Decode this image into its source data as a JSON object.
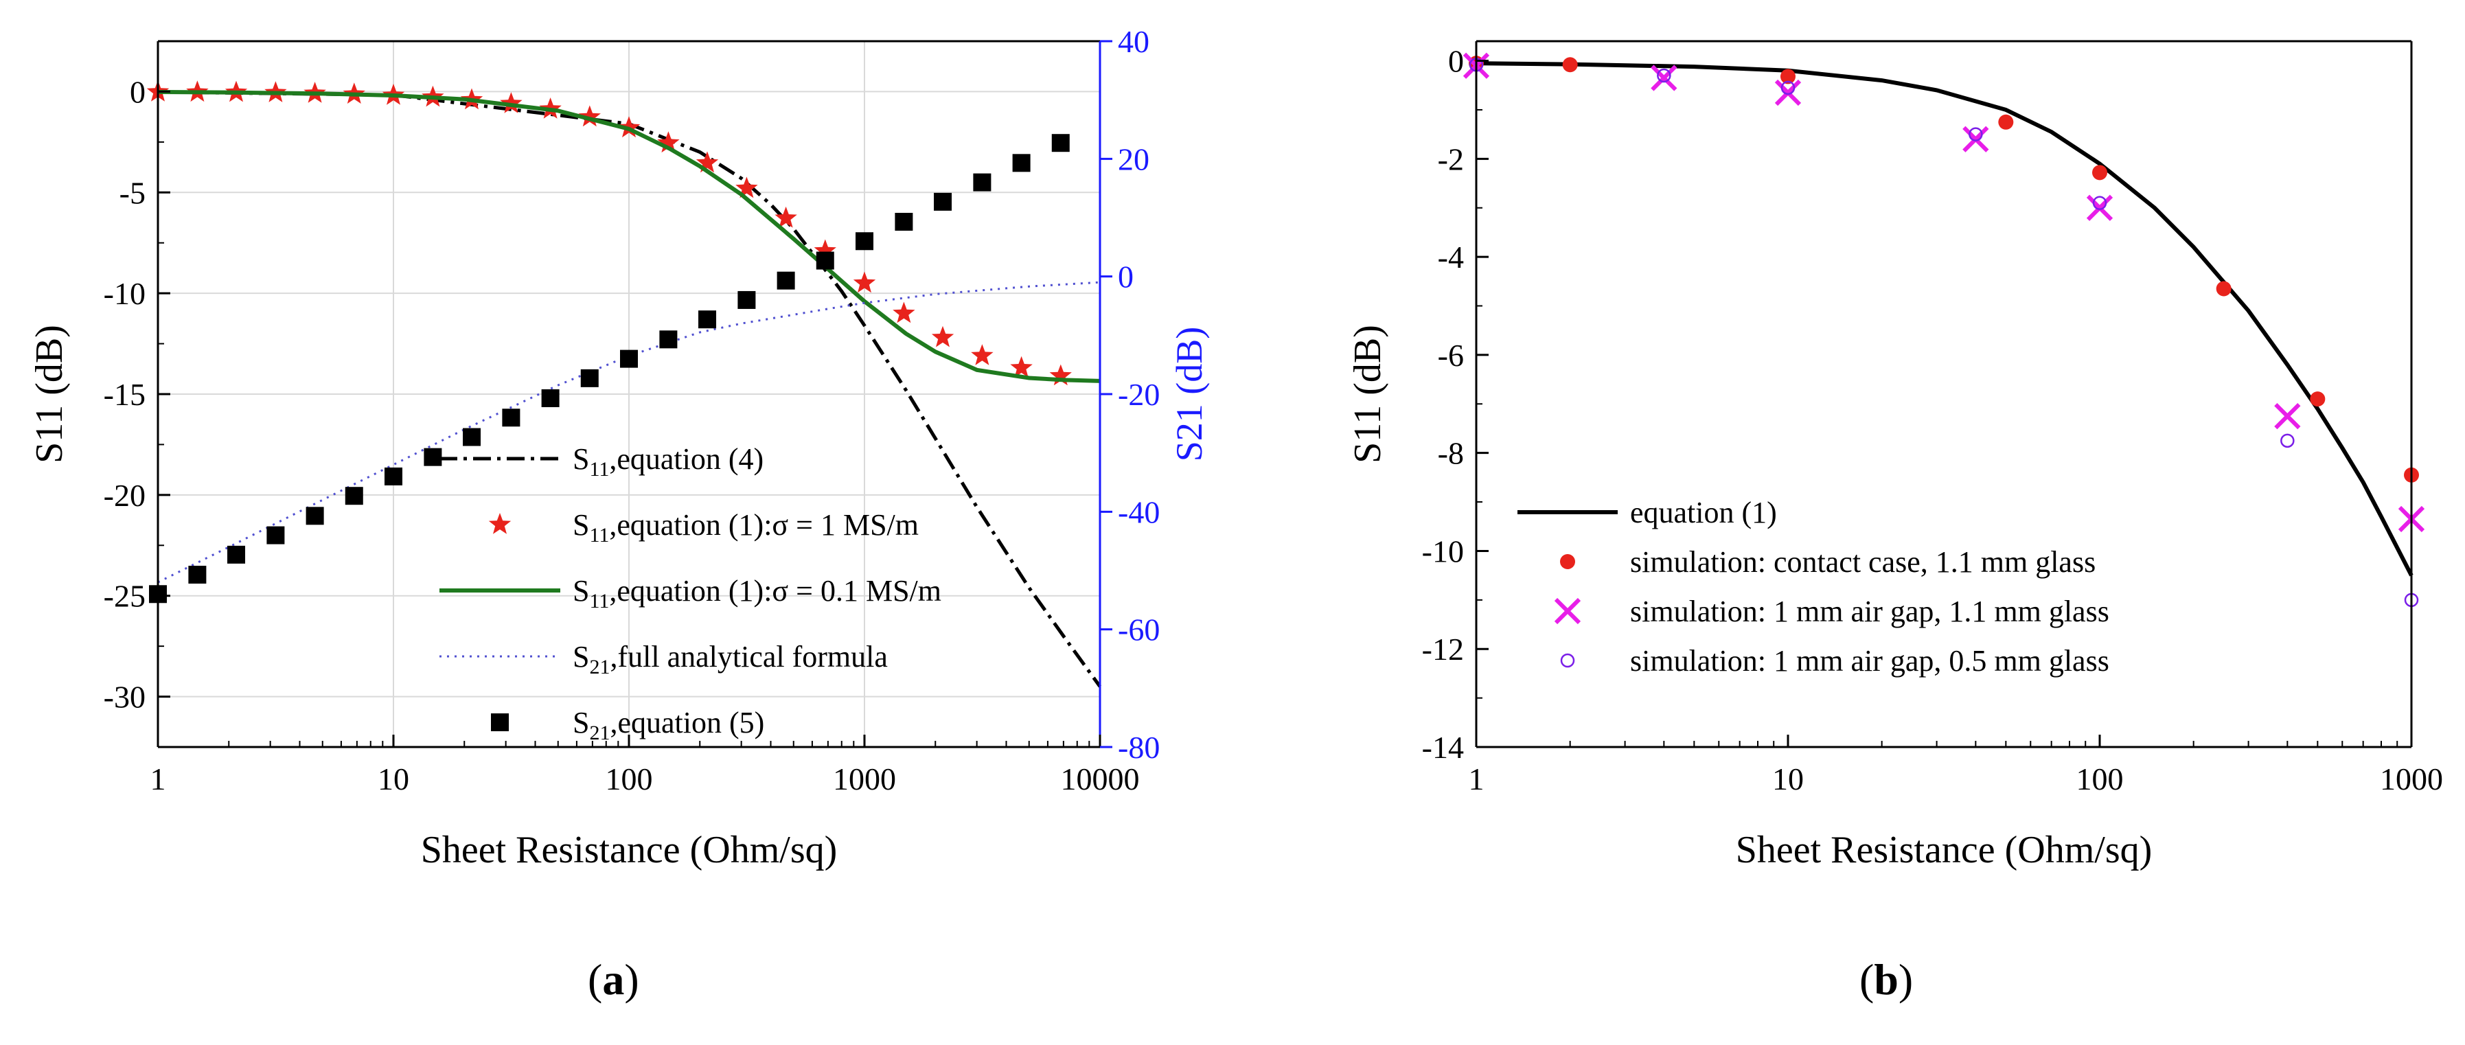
{
  "chart_data": [
    {
      "panel": "a",
      "type": "line",
      "xscale": "log",
      "xlabel": "Sheet Resistance (Ohm/sq)",
      "ylabel": "S11 (dB)",
      "y2label": "S21 (dB)",
      "xlim": [
        1,
        10000
      ],
      "ylim": [
        -32.5,
        2.5
      ],
      "y2lim": [
        -80,
        40
      ],
      "grid": true,
      "legend_position": "bottom-center",
      "x_ticks": [
        {
          "v": 1,
          "label": "1"
        },
        {
          "v": 10,
          "label": "10"
        },
        {
          "v": 100,
          "label": "100"
        },
        {
          "v": 1000,
          "label": "1000"
        },
        {
          "v": 10000,
          "label": "10000"
        }
      ],
      "y_ticks": [
        {
          "v": 0,
          "label": "0"
        },
        {
          "v": -5,
          "label": "-5"
        },
        {
          "v": -10,
          "label": "-10"
        },
        {
          "v": -15,
          "label": "-15"
        },
        {
          "v": -20,
          "label": "-20"
        },
        {
          "v": -25,
          "label": "-25"
        },
        {
          "v": -30,
          "label": "-30"
        }
      ],
      "y2_ticks": [
        {
          "v": 40,
          "label": "40"
        },
        {
          "v": 20,
          "label": "20"
        },
        {
          "v": 0,
          "label": "0"
        },
        {
          "v": -20,
          "label": "-20"
        },
        {
          "v": -40,
          "label": "-40"
        },
        {
          "v": -60,
          "label": "-60"
        },
        {
          "v": -80,
          "label": "-80"
        }
      ],
      "series": [
        {
          "name": "S11,equation (4)",
          "sub": "11",
          "text": ",equation (4)",
          "style": "dashdot",
          "color": "#000000",
          "axis": "left",
          "x": [
            1,
            10,
            100,
            200,
            300,
            400,
            500,
            600,
            800,
            1000,
            1500,
            2000,
            3000,
            5000,
            7000,
            10000
          ],
          "y": [
            -0.02,
            -0.17,
            -1.6,
            -3.0,
            -4.3,
            -5.6,
            -6.8,
            -8.0,
            -9.9,
            -11.6,
            -14.8,
            -17.2,
            -20.6,
            -24.6,
            -27.0,
            -29.5
          ]
        },
        {
          "name": "S11,equation (1):σ = 1 MS/m",
          "sub": "11",
          "text": ",equation (1):σ = 1 MS/m",
          "style": "star",
          "color": "#e8231c",
          "axis": "left",
          "x": [
            1,
            1.47,
            2.15,
            3.16,
            4.64,
            6.81,
            10,
            14.7,
            21.5,
            31.6,
            46.4,
            68.1,
            100,
            147,
            215,
            316,
            464,
            681,
            1000,
            1470,
            2150,
            3160,
            4640,
            6810
          ],
          "y": [
            -0.02,
            -0.03,
            -0.04,
            -0.06,
            -0.09,
            -0.13,
            -0.19,
            -0.28,
            -0.41,
            -0.6,
            -0.87,
            -1.26,
            -1.8,
            -2.55,
            -3.54,
            -4.8,
            -6.28,
            -7.9,
            -9.5,
            -11.0,
            -12.2,
            -13.1,
            -13.7,
            -14.1
          ]
        },
        {
          "name": "S11,equation (1):σ = 0.1 MS/m",
          "sub": "11",
          "text": ",equation (1):σ = 0.1 MS/m",
          "style": "solid",
          "color": "#1f7a1f",
          "axis": "left",
          "x": [
            1,
            2,
            5,
            10,
            20,
            50,
            100,
            150,
            200,
            300,
            500,
            700,
            1000,
            1500,
            2000,
            3000,
            5000,
            7000,
            10000
          ],
          "y": [
            -0.02,
            -0.04,
            -0.1,
            -0.19,
            -0.38,
            -0.95,
            -1.85,
            -2.85,
            -3.7,
            -5.1,
            -7.3,
            -8.8,
            -10.4,
            -12.0,
            -12.9,
            -13.8,
            -14.2,
            -14.3,
            -14.35
          ]
        },
        {
          "name": "S21,full analytical formula",
          "sub": "21",
          "text": ",full analytical formula",
          "style": "dotted",
          "color": "#5050d0",
          "axis": "right",
          "x": [
            1,
            2,
            5,
            10,
            20,
            50,
            100,
            200,
            300,
            500,
            700,
            1000,
            2000,
            5000,
            10000
          ],
          "y": [
            -52,
            -46,
            -38,
            -32,
            -26,
            -18.5,
            -13.5,
            -9.5,
            -8,
            -6.5,
            -5.5,
            -4.5,
            -3,
            -1.7,
            -1
          ]
        },
        {
          "name": "S21,equation (5)",
          "sub": "21",
          "text": ",equation (5)",
          "style": "square",
          "color": "#000000",
          "axis": "right",
          "x": [
            1,
            1.47,
            2.15,
            3.16,
            4.64,
            6.81,
            10,
            14.7,
            21.5,
            31.6,
            46.4,
            68.1,
            100,
            147,
            215,
            316,
            464,
            681,
            1000,
            1470,
            2150,
            3160,
            4640,
            6810
          ],
          "y": [
            -54,
            -50.7,
            -47.3,
            -44,
            -40.7,
            -37.3,
            -34,
            -30.7,
            -27.3,
            -24,
            -20.7,
            -17.3,
            -14,
            -10.7,
            -7.3,
            -4,
            -0.7,
            2.7,
            6,
            9.3,
            12.7,
            16,
            19.3,
            22.7
          ]
        }
      ]
    },
    {
      "panel": "b",
      "type": "scatter",
      "xscale": "log",
      "xlabel": "Sheet Resistance (Ohm/sq)",
      "ylabel": "S11 (dB)",
      "xlim": [
        1,
        1000
      ],
      "ylim": [
        -14,
        0.4
      ],
      "grid": false,
      "legend_position": "bottom-left",
      "x_ticks": [
        {
          "v": 1,
          "label": "1"
        },
        {
          "v": 10,
          "label": "10"
        },
        {
          "v": 100,
          "label": "100"
        },
        {
          "v": 1000,
          "label": "1000"
        }
      ],
      "y_ticks": [
        {
          "v": 0,
          "label": "0"
        },
        {
          "v": -2,
          "label": "-2"
        },
        {
          "v": -4,
          "label": "-4"
        },
        {
          "v": -6,
          "label": "-6"
        },
        {
          "v": -8,
          "label": "-8"
        },
        {
          "v": -10,
          "label": "-10"
        },
        {
          "v": -12,
          "label": "-12"
        },
        {
          "v": -14,
          "label": "-14"
        }
      ],
      "series": [
        {
          "name": "equation (1)",
          "style": "solid",
          "color": "#000000",
          "x": [
            1,
            2,
            5,
            10,
            20,
            30,
            50,
            70,
            100,
            150,
            200,
            300,
            400,
            500,
            600,
            700,
            800,
            1000
          ],
          "y": [
            -0.05,
            -0.07,
            -0.12,
            -0.2,
            -0.4,
            -0.6,
            -1.0,
            -1.45,
            -2.1,
            -3.0,
            -3.8,
            -5.1,
            -6.2,
            -7.1,
            -7.9,
            -8.6,
            -9.3,
            -10.5
          ]
        },
        {
          "name": "simulation: contact case, 1.1 mm glass",
          "style": "dot",
          "color": "#e8231c",
          "x": [
            1,
            2,
            10,
            50,
            100,
            250,
            500,
            1000
          ],
          "y": [
            -0.05,
            -0.08,
            -0.32,
            -1.25,
            -2.28,
            -4.65,
            -6.9,
            -8.45
          ]
        },
        {
          "name": "simulation: 1 mm air gap, 1.1 mm glass",
          "style": "cross",
          "color": "#e81ee8",
          "x": [
            1,
            4,
            10,
            40,
            100,
            400,
            1000
          ],
          "y": [
            -0.1,
            -0.35,
            -0.65,
            -1.6,
            -3.0,
            -7.25,
            -9.35
          ]
        },
        {
          "name": "simulation: 1 mm air gap, 0.5 mm glass",
          "style": "circle",
          "color": "#7a1ee8",
          "x": [
            1,
            4,
            10,
            40,
            100,
            400,
            1000
          ],
          "y": [
            -0.08,
            -0.3,
            -0.55,
            -1.5,
            -2.9,
            -7.75,
            -11.0
          ]
        }
      ]
    }
  ],
  "labels": {
    "a": "a",
    "b": "b",
    "open": "(",
    "close": ")"
  }
}
